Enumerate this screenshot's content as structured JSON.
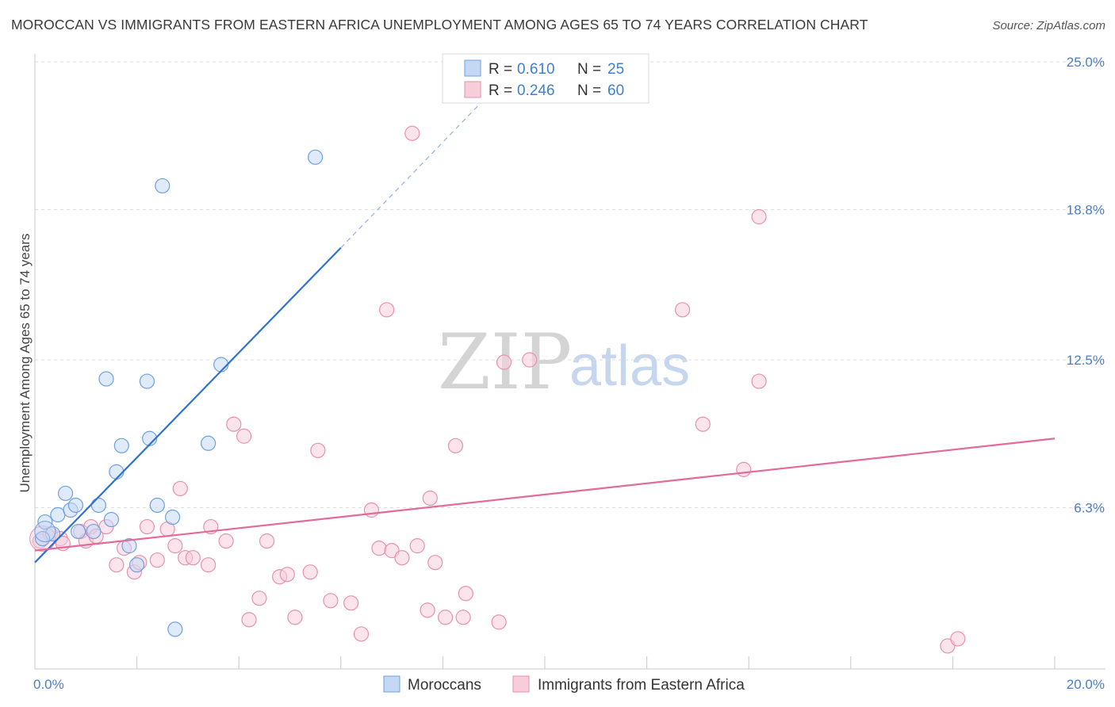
{
  "header": {
    "title": "MOROCCAN VS IMMIGRANTS FROM EASTERN AFRICA UNEMPLOYMENT AMONG AGES 65 TO 74 YEARS CORRELATION CHART",
    "source": "Source: ZipAtlas.com"
  },
  "watermark": {
    "zip": "ZIP",
    "atlas": "atlas"
  },
  "colors": {
    "blue": "#6fa0e0",
    "blue_fill": "#c4d8f5",
    "blue_line": "#2f72d0",
    "pink": "#e890b0",
    "pink_fill": "#f8cdda",
    "pink_line": "#e46a9a",
    "tick": "#4a7ec9",
    "grid": "#dddddd"
  },
  "legend": {
    "r_label": "R =",
    "n_label": "N =",
    "rows": [
      {
        "r": "0.610",
        "n": "25"
      },
      {
        "r": "0.246",
        "n": "60"
      }
    ]
  },
  "chart_data": {
    "type": "scatter",
    "title": "MOROCCAN VS IMMIGRANTS FROM EASTERN AFRICA UNEMPLOYMENT AMONG AGES 65 TO 74 YEARS CORRELATION CHART",
    "xlabel": "",
    "ylabel": "Unemployment Among Ages 65 to 74 years",
    "xlim": [
      0,
      20
    ],
    "ylim": [
      0,
      25
    ],
    "x_tick_labels": [
      "0.0%",
      "20.0%"
    ],
    "y_ticks": [
      6.3,
      12.5,
      18.8,
      25.0
    ],
    "y_tick_labels": [
      "6.3%",
      "12.5%",
      "18.8%",
      "25.0%"
    ],
    "grid": true,
    "series": [
      {
        "name": "Moroccans",
        "r": 0.61,
        "n": 25,
        "trend": {
          "x0": 0,
          "y0": 4.0,
          "x1": 6.0,
          "y1": 17.2,
          "dash_to_x": 8.8,
          "dash_to_y": 23.4
        },
        "points": [
          [
            0.2,
            5.7
          ],
          [
            0.35,
            5.2
          ],
          [
            0.45,
            6.0
          ],
          [
            0.6,
            6.9
          ],
          [
            0.7,
            6.2
          ],
          [
            0.8,
            6.4
          ],
          [
            0.85,
            5.3
          ],
          [
            1.25,
            6.4
          ],
          [
            1.4,
            11.7
          ],
          [
            1.5,
            5.8
          ],
          [
            1.6,
            7.8
          ],
          [
            1.7,
            8.9
          ],
          [
            1.85,
            4.7
          ],
          [
            2.0,
            3.9
          ],
          [
            2.2,
            11.6
          ],
          [
            2.25,
            9.2
          ],
          [
            2.4,
            6.4
          ],
          [
            2.5,
            19.8
          ],
          [
            2.7,
            5.9
          ],
          [
            2.75,
            1.2
          ],
          [
            3.4,
            9.0
          ],
          [
            3.65,
            12.3
          ],
          [
            5.5,
            21.0
          ],
          [
            0.15,
            5.0
          ],
          [
            1.15,
            5.3
          ]
        ]
      },
      {
        "name": "Immigrants from Eastern Africa",
        "r": 0.246,
        "n": 60,
        "trend": {
          "x0": 0,
          "y0": 4.5,
          "x1": 20,
          "y1": 9.2
        },
        "points": [
          [
            0.1,
            4.9
          ],
          [
            0.3,
            5.2
          ],
          [
            0.5,
            5.0
          ],
          [
            0.9,
            5.3
          ],
          [
            1.0,
            4.9
          ],
          [
            1.1,
            5.5
          ],
          [
            1.2,
            5.1
          ],
          [
            1.4,
            5.5
          ],
          [
            1.6,
            3.9
          ],
          [
            1.75,
            4.6
          ],
          [
            1.95,
            3.6
          ],
          [
            2.05,
            4.0
          ],
          [
            2.2,
            5.5
          ],
          [
            2.4,
            4.1
          ],
          [
            2.6,
            5.4
          ],
          [
            2.75,
            4.7
          ],
          [
            2.85,
            7.1
          ],
          [
            2.95,
            4.2
          ],
          [
            3.1,
            4.2
          ],
          [
            3.4,
            3.9
          ],
          [
            3.45,
            5.5
          ],
          [
            3.75,
            4.9
          ],
          [
            3.9,
            9.8
          ],
          [
            4.1,
            9.3
          ],
          [
            4.2,
            1.6
          ],
          [
            4.4,
            2.5
          ],
          [
            4.55,
            4.9
          ],
          [
            4.8,
            3.4
          ],
          [
            4.95,
            3.5
          ],
          [
            5.1,
            1.7
          ],
          [
            5.4,
            3.6
          ],
          [
            5.55,
            8.7
          ],
          [
            5.8,
            2.4
          ],
          [
            6.2,
            2.3
          ],
          [
            6.4,
            1.0
          ],
          [
            6.6,
            6.2
          ],
          [
            6.75,
            4.6
          ],
          [
            6.9,
            14.6
          ],
          [
            7.0,
            4.5
          ],
          [
            7.2,
            4.2
          ],
          [
            7.4,
            22.0
          ],
          [
            7.5,
            4.7
          ],
          [
            7.7,
            2.0
          ],
          [
            7.75,
            6.7
          ],
          [
            7.85,
            4.0
          ],
          [
            8.05,
            1.7
          ],
          [
            8.25,
            8.9
          ],
          [
            8.4,
            1.7
          ],
          [
            8.45,
            2.7
          ],
          [
            9.1,
            1.5
          ],
          [
            9.2,
            12.4
          ],
          [
            9.7,
            12.5
          ],
          [
            12.7,
            14.6
          ],
          [
            13.1,
            9.8
          ],
          [
            13.9,
            7.9
          ],
          [
            14.2,
            18.5
          ],
          [
            14.2,
            11.6
          ],
          [
            17.9,
            0.5
          ],
          [
            18.1,
            0.8
          ],
          [
            0.55,
            4.8
          ]
        ]
      }
    ]
  }
}
